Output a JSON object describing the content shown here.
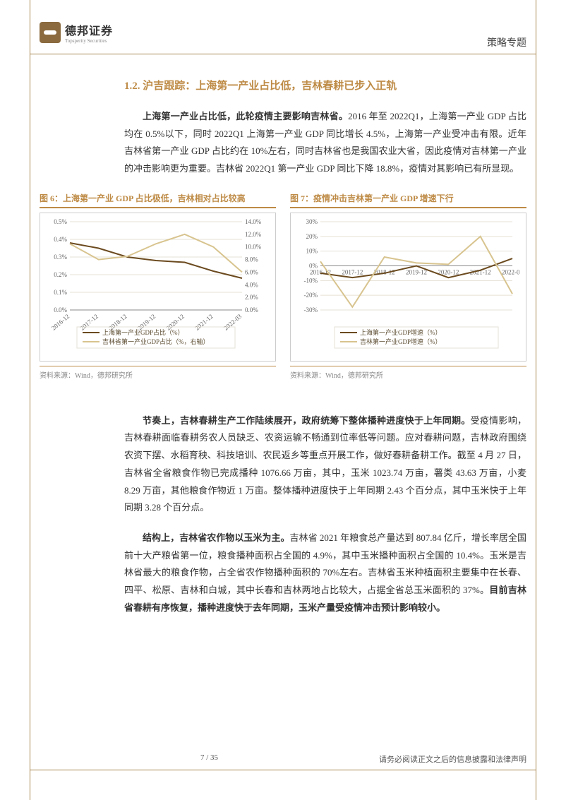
{
  "header": {
    "company_cn": "德邦证券",
    "company_en": "Topsperity Securities",
    "doc_type": "策略专题"
  },
  "section": {
    "number": "1.2.",
    "title": "沪吉跟踪：上海第一产业占比低，吉林春耕已步入正轨"
  },
  "para1": {
    "bold_lead": "上海第一产业占比低，此轮疫情主要影响吉林省。",
    "text": "2016 年至 2022Q1，上海第一产业 GDP 占比均在 0.5%以下，同时 2022Q1 上海第一产业 GDP 同比增长 4.5%，上海第一产业受冲击有限。近年吉林省第一产业 GDP 占比约在 10%左右，同时吉林省也是我国农业大省，因此疫情对吉林第一产业的冲击影响更为重要。吉林省 2022Q1 第一产业 GDP 同比下降 18.8%，疫情对其影响已有所显现。"
  },
  "chart6": {
    "title": "图 6：上海第一产业 GDP 占比极低，吉林相对占比较高",
    "source": "资料来源：Wind，德邦研究所",
    "categories": [
      "2016-12",
      "2017-12",
      "2018-12",
      "2019-12",
      "2020-12",
      "2021-12",
      "2022-03"
    ],
    "series1_label": "上海第一产业GDP占比（%）",
    "series2_label": "吉林省第一产业GDP占比（%，右轴）",
    "series1_values": [
      0.38,
      0.35,
      0.3,
      0.28,
      0.27,
      0.22,
      0.18
    ],
    "series2_values": [
      10.5,
      8.0,
      8.5,
      10.5,
      12.0,
      10.0,
      6.0
    ],
    "y1_ticks": [
      "0.0%",
      "0.1%",
      "0.2%",
      "0.3%",
      "0.4%",
      "0.5%"
    ],
    "y2_ticks": [
      "0.0%",
      "2.0%",
      "4.0%",
      "6.0%",
      "8.0%",
      "10.0%",
      "12.0%",
      "14.0%"
    ],
    "y1_max": 0.5,
    "y1_min": 0.0,
    "y2_max": 14.0,
    "y2_min": 0.0,
    "color1": "#6b4a1f",
    "color2": "#d8c48f",
    "grid_color": "#e6e0d4",
    "axis_color": "#888888",
    "bg": "#ffffff"
  },
  "chart7": {
    "title": "图 7：疫情冲击吉林第一产业 GDP 增速下行",
    "source": "资料来源：Wind，德邦研究所",
    "categories": [
      "2016-12",
      "2017-12",
      "2018-12",
      "2019-12",
      "2020-12",
      "2021-12",
      "2022-03"
    ],
    "series1_label": "上海第一产业GDP增速（%）",
    "series2_label": "吉林第一产业GDP增速（%）",
    "series1_values": [
      -5,
      -8,
      -5,
      0,
      -8,
      -3,
      5
    ],
    "series2_values": [
      3,
      -28,
      6,
      2,
      1,
      20,
      -19
    ],
    "y_ticks": [
      "-30%",
      "-20%",
      "-10%",
      "0%",
      "10%",
      "20%",
      "30%"
    ],
    "y_max": 30,
    "y_min": -30,
    "color1": "#6b4a1f",
    "color2": "#d8c48f",
    "grid_color": "#e6e0d4",
    "axis_color": "#888888",
    "bg": "#ffffff"
  },
  "para2": {
    "bold_lead": "节奏上，吉林春耕生产工作陆续展开，政府统筹下整体播种进度快于上年同期。",
    "text": "受疫情影响，吉林春耕面临春耕务农人员缺乏、农资运输不畅通到位率低等问题。应对春耕问题，吉林政府围绕农资下摆、水稻育秧、科技培训、农民返乡等重点开展工作，做好春耕备耕工作。截至 4 月 27 日，吉林省全省粮食作物已完成播种 1076.66 万亩，其中，玉米 1023.74 万亩，薯类 43.63 万亩，小麦 8.29 万亩，其他粮食作物近 1 万亩。整体播种进度快于上年同期 2.43 个百分点，其中玉米快于上年同期 3.28 个百分点。"
  },
  "para3": {
    "bold_lead": "结构上，吉林省农作物以玉米为主。",
    "mid": "吉林省 2021 年粮食总产量达到 807.84 亿斤，增长率居全国前十大产粮省第一位，粮食播种面积占全国的 4.9%，其中玉米播种面积占全国的 10.4%。玉米是吉林省最大的粮食作物，占全省农作物播种面积的 70%左右。吉林省玉米种植面积主要集中在长春、四平、松原、吉林和白城，其中长春和吉林两地占比较大，占据全省总玉米面积的 37%。",
    "bold_tail": "目前吉林省春耕有序恢复，播种进度快于去年同期，玉米产量受疫情冲击预计影响较小。"
  },
  "footer": {
    "page": "7 / 35",
    "disclaimer": "请务必阅读正文之后的信息披露和法律声明"
  }
}
